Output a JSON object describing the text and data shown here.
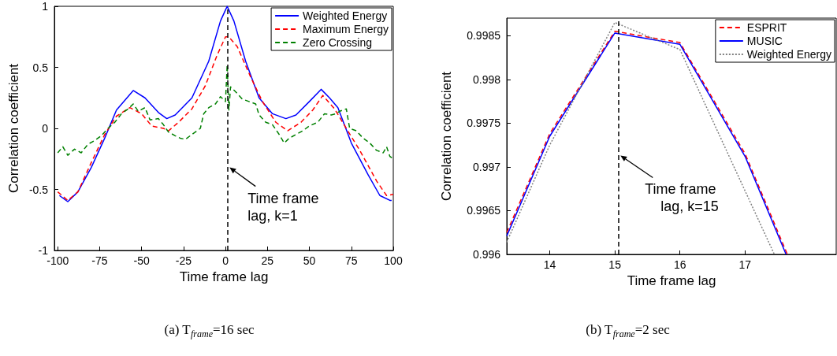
{
  "chart_data": [
    {
      "type": "line",
      "xlabel": "Time frame lag",
      "ylabel": "Correlation coefficient",
      "xlim": [
        -102,
        100
      ],
      "ylim": [
        -1,
        1
      ],
      "xticks": [
        -100,
        -75,
        -50,
        -25,
        0,
        25,
        50,
        75,
        100
      ],
      "yticks": [
        -1,
        -0.5,
        0,
        0.5,
        1
      ],
      "legend": "top right",
      "marker": "none",
      "ref_lines": [
        {
          "axis": "x",
          "value": 1,
          "color": "#000000",
          "line_style": "dashed"
        }
      ],
      "annotations": [
        {
          "text": "Time frame\nlag, k=1",
          "x": 1,
          "y": -0.32
        },
        "(a) T$_{frame}$=16 sec"
      ],
      "series": [
        {
          "name": "Weighted Energy",
          "color": "#0000ff",
          "line_style": "solid",
          "x": [
            -99,
            -94,
            -88,
            -80,
            -72,
            -65,
            -55,
            -48,
            -40,
            -35,
            -30,
            -20,
            -10,
            -3,
            0,
            1,
            5,
            12,
            20,
            28,
            36,
            42,
            50,
            57,
            62,
            67,
            75,
            85,
            92,
            98,
            99
          ],
          "values": [
            -0.55,
            -0.6,
            -0.52,
            -0.32,
            -0.08,
            0.15,
            0.31,
            0.25,
            0.13,
            0.08,
            0.11,
            0.25,
            0.55,
            0.88,
            0.97,
            1.0,
            0.88,
            0.55,
            0.25,
            0.12,
            0.08,
            0.11,
            0.22,
            0.32,
            0.25,
            0.17,
            -0.12,
            -0.38,
            -0.55,
            -0.59,
            -0.59
          ]
        },
        {
          "name": "Maximum Energy",
          "color": "#ff0000",
          "line_style": "dashed",
          "x": [
            -100,
            -94,
            -88,
            -80,
            -72,
            -65,
            -57,
            -50,
            -44,
            -37,
            -34,
            -28,
            -20,
            -12,
            -5,
            0,
            2,
            7,
            15,
            22,
            30,
            37,
            45,
            52,
            58,
            65,
            72,
            80,
            90,
            96,
            100
          ],
          "values": [
            -0.52,
            -0.59,
            -0.52,
            -0.28,
            -0.05,
            0.1,
            0.17,
            0.12,
            0.02,
            0.0,
            -0.02,
            0.05,
            0.16,
            0.35,
            0.6,
            0.75,
            0.75,
            0.67,
            0.42,
            0.22,
            0.05,
            -0.02,
            0.05,
            0.15,
            0.27,
            0.16,
            0.0,
            -0.18,
            -0.43,
            -0.55,
            -0.54
          ]
        },
        {
          "name": "Zero Crossing",
          "color": "#008000",
          "line_style": "dashed",
          "x": [
            -100,
            -97,
            -94,
            -90,
            -86,
            -82,
            -78,
            -74,
            -70,
            -66,
            -62,
            -58,
            -55,
            -52,
            -48,
            -45,
            -40,
            -37,
            -34,
            -30,
            -27,
            -24,
            -20,
            -15,
            -13,
            -10,
            -6,
            -3,
            0,
            1,
            2,
            3,
            6,
            10,
            14,
            18,
            20,
            24,
            28,
            32,
            35,
            38,
            42,
            46,
            50,
            55,
            59,
            63,
            66,
            68,
            72,
            74,
            78,
            82,
            86,
            90,
            94,
            96,
            98,
            100
          ],
          "values": [
            -0.2,
            -0.15,
            -0.22,
            -0.17,
            -0.2,
            -0.13,
            -0.1,
            -0.06,
            0.0,
            0.05,
            0.12,
            0.16,
            0.2,
            0.14,
            0.17,
            0.07,
            0.08,
            0.03,
            -0.03,
            -0.06,
            -0.08,
            -0.09,
            -0.05,
            0.0,
            0.12,
            0.17,
            0.2,
            0.26,
            0.22,
            0.52,
            0.15,
            0.34,
            0.3,
            0.24,
            0.22,
            0.2,
            0.11,
            0.05,
            0.03,
            -0.05,
            -0.12,
            -0.08,
            -0.05,
            -0.02,
            0.02,
            0.05,
            0.12,
            0.11,
            0.12,
            0.14,
            0.16,
            0.0,
            -0.02,
            -0.08,
            -0.12,
            -0.18,
            -0.2,
            -0.15,
            -0.23,
            -0.25
          ]
        }
      ]
    },
    {
      "type": "line",
      "xlabel": "Time frame lag",
      "ylabel": "Correlation coefficient",
      "xlim": [
        13.34,
        18.4
      ],
      "ylim": [
        0.996,
        0.9987
      ],
      "xticks": [
        14,
        15,
        16,
        17
      ],
      "yticks": [
        0.996,
        0.9965,
        0.997,
        0.9975,
        0.998,
        0.9985
      ],
      "legend": "top right",
      "marker": "none",
      "ref_lines": [
        {
          "axis": "x",
          "value": 15.05,
          "color": "#000000",
          "line_style": "dashed"
        }
      ],
      "annotations": [
        {
          "text": "Time frame\n    lag, k=15",
          "x": 15.05,
          "y": 0.99713
        },
        "(b) T$_{frame}$=2 sec"
      ],
      "series": [
        {
          "name": "ESPRIT",
          "color": "#ff0000",
          "line_style": "dashed",
          "x": [
            13.34,
            14,
            15,
            16,
            17,
            17.65
          ],
          "values": [
            0.99625,
            0.99738,
            0.99855,
            0.99842,
            0.99715,
            0.996
          ]
        },
        {
          "name": "MUSIC",
          "color": "#0000ff",
          "line_style": "solid",
          "x": [
            13.34,
            14,
            15,
            16,
            17,
            17.63
          ],
          "values": [
            0.99621,
            0.99735,
            0.99853,
            0.9984,
            0.99712,
            0.996
          ]
        },
        {
          "name": "Weighted Energy",
          "color": "#808080",
          "line_style": "dotted",
          "x": [
            13.34,
            14,
            15,
            16,
            17.45
          ],
          "values": [
            0.99614,
            0.99725,
            0.99865,
            0.99834,
            0.996
          ]
        }
      ]
    }
  ]
}
